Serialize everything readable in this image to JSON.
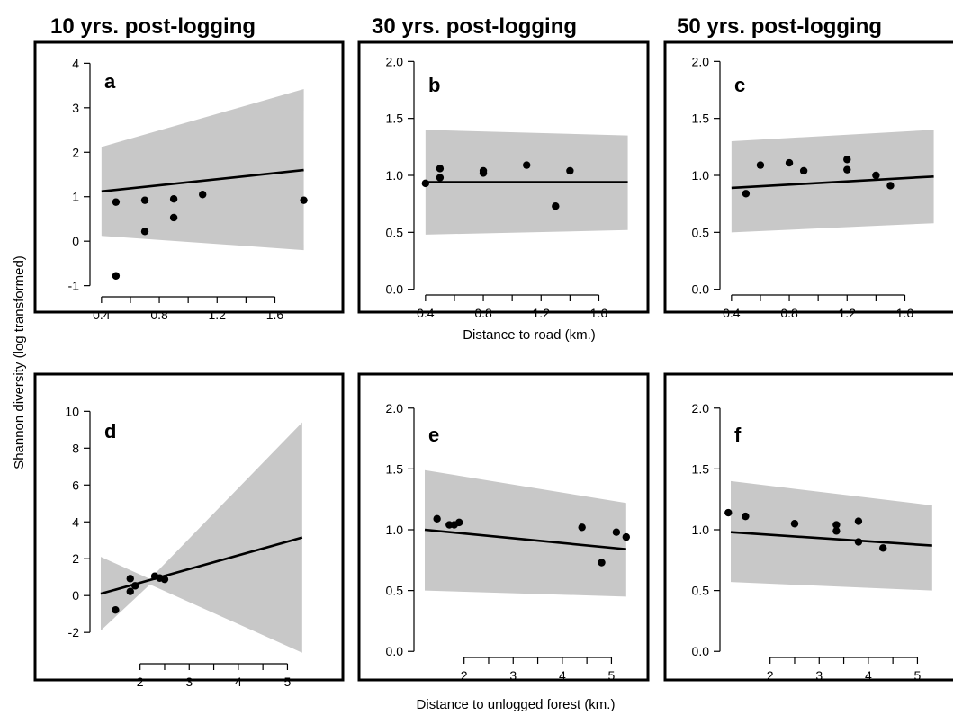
{
  "column_titles": [
    "10 yrs. post-logging",
    "30 yrs. post-logging",
    "50 yrs. post-logging"
  ],
  "ylabel": "Shannon diversity (log transformed)",
  "xlabels": [
    "Distance to road (km.)",
    "Distance to unlogged forest (km.)"
  ],
  "colors": {
    "band": "#c8c8c8",
    "points": "#000000",
    "line": "#000000"
  },
  "chart_data": [
    {
      "type": "scatter",
      "panel": "a",
      "title": "10 yrs. post-logging",
      "xlabel": "Distance to road (km.)",
      "ylabel": "Shannon diversity (log transformed)",
      "xlim": [
        0.32,
        1.84
      ],
      "ylim": [
        -1.25,
        4.25
      ],
      "xticks": [
        0.4,
        0.8,
        1.2,
        1.6
      ],
      "yticks": [
        -1,
        0,
        1,
        2,
        3,
        4
      ],
      "points": [
        [
          0.5,
          0.88
        ],
        [
          0.5,
          -0.78
        ],
        [
          0.7,
          0.92
        ],
        [
          0.7,
          0.22
        ],
        [
          0.9,
          0.95
        ],
        [
          0.9,
          0.53
        ],
        [
          1.1,
          1.05
        ],
        [
          1.8,
          0.92
        ]
      ],
      "fit": {
        "x": [
          0.4,
          1.8
        ],
        "y": [
          1.12,
          1.6
        ]
      },
      "band": {
        "x": [
          0.4,
          1.8
        ],
        "upper": [
          2.12,
          3.42
        ],
        "lower": [
          0.12,
          -0.2
        ]
      },
      "grid": false
    },
    {
      "type": "scatter",
      "panel": "b",
      "title": "30 yrs. post-logging",
      "xlabel": "Distance to road (km.)",
      "ylabel": "Shannon diversity (log transformed)",
      "xlim": [
        0.32,
        1.84
      ],
      "ylim": [
        -0.05,
        2.05
      ],
      "xticks": [
        0.4,
        0.8,
        1.2,
        1.6
      ],
      "yticks": [
        0.0,
        0.5,
        1.0,
        1.5,
        2.0
      ],
      "ytick_labels": [
        "0.0",
        "0.5",
        "1.0",
        "1.5",
        "2.0"
      ],
      "points": [
        [
          0.4,
          0.93
        ],
        [
          0.5,
          1.06
        ],
        [
          0.5,
          0.98
        ],
        [
          0.8,
          1.04
        ],
        [
          0.8,
          1.02
        ],
        [
          1.1,
          1.09
        ],
        [
          1.3,
          0.73
        ],
        [
          1.4,
          1.04
        ]
      ],
      "fit": {
        "x": [
          0.4,
          1.8
        ],
        "y": [
          0.94,
          0.94
        ]
      },
      "band": {
        "x": [
          0.4,
          1.8
        ],
        "upper": [
          1.4,
          1.35
        ],
        "lower": [
          0.48,
          0.52
        ]
      },
      "grid": false
    },
    {
      "type": "scatter",
      "panel": "c",
      "title": "50 yrs. post-logging",
      "xlabel": "Distance to road (km.)",
      "ylabel": "Shannon diversity (log transformed)",
      "xlim": [
        0.32,
        1.84
      ],
      "ylim": [
        -0.05,
        2.05
      ],
      "xticks": [
        0.4,
        0.8,
        1.2,
        1.6
      ],
      "yticks": [
        0.0,
        0.5,
        1.0,
        1.5,
        2.0
      ],
      "ytick_labels": [
        "0.0",
        "0.5",
        "1.0",
        "1.5",
        "2.0"
      ],
      "points": [
        [
          0.5,
          0.84
        ],
        [
          0.6,
          1.09
        ],
        [
          0.8,
          1.11
        ],
        [
          0.9,
          1.04
        ],
        [
          1.2,
          1.14
        ],
        [
          1.2,
          1.05
        ],
        [
          1.4,
          1.0
        ],
        [
          1.5,
          0.91
        ]
      ],
      "fit": {
        "x": [
          0.4,
          1.8
        ],
        "y": [
          0.89,
          0.99
        ]
      },
      "band": {
        "x": [
          0.4,
          1.8
        ],
        "upper": [
          1.3,
          1.4
        ],
        "lower": [
          0.5,
          0.58
        ]
      },
      "grid": false
    },
    {
      "type": "scatter",
      "panel": "d",
      "title": "10 yrs. post-logging",
      "xlabel": "Distance to unlogged forest (km.)",
      "ylabel": "Shannon diversity (log transformed)",
      "xlim": [
        0.98,
        5.45
      ],
      "ylim": [
        -3.7,
        10.7
      ],
      "xticks": [
        2,
        3,
        4,
        5
      ],
      "yticks": [
        -2,
        0,
        2,
        4,
        6,
        8,
        10
      ],
      "points": [
        [
          1.5,
          -0.78
        ],
        [
          1.8,
          0.92
        ],
        [
          1.8,
          0.22
        ],
        [
          1.9,
          0.53
        ],
        [
          2.3,
          1.05
        ],
        [
          2.4,
          0.95
        ],
        [
          2.5,
          0.88
        ]
      ],
      "fit": {
        "x": [
          1.2,
          5.3
        ],
        "y": [
          0.1,
          3.15
        ]
      },
      "band": {
        "x": [
          1.2,
          2.2,
          5.3
        ],
        "upper": [
          2.1,
          0.9,
          9.4
        ],
        "lower": [
          -1.9,
          0.6,
          -3.1
        ]
      },
      "grid": false
    },
    {
      "type": "scatter",
      "panel": "e",
      "title": "30 yrs. post-logging",
      "xlabel": "Distance to unlogged forest (km.)",
      "ylabel": "Shannon diversity (log transformed)",
      "xlim": [
        0.98,
        5.45
      ],
      "ylim": [
        -0.05,
        2.05
      ],
      "xticks": [
        2,
        3,
        4,
        5
      ],
      "yticks": [
        0.0,
        0.5,
        1.0,
        1.5,
        2.0
      ],
      "ytick_labels": [
        "0.0",
        "0.5",
        "1.0",
        "1.5",
        "2.0"
      ],
      "points": [
        [
          1.45,
          1.09
        ],
        [
          1.7,
          1.04
        ],
        [
          1.8,
          1.04
        ],
        [
          1.9,
          1.06
        ],
        [
          4.4,
          1.02
        ],
        [
          4.8,
          0.73
        ],
        [
          5.1,
          0.98
        ],
        [
          5.3,
          0.94
        ]
      ],
      "fit": {
        "x": [
          1.2,
          5.3
        ],
        "y": [
          1.0,
          0.84
        ]
      },
      "band": {
        "x": [
          1.2,
          5.3
        ],
        "upper": [
          1.49,
          1.22
        ],
        "lower": [
          0.5,
          0.45
        ]
      },
      "grid": false
    },
    {
      "type": "scatter",
      "panel": "f",
      "title": "50 yrs. post-logging",
      "xlabel": "Distance to unlogged forest (km.)",
      "ylabel": "Shannon diversity (log transformed)",
      "xlim": [
        0.98,
        5.45
      ],
      "ylim": [
        -0.05,
        2.05
      ],
      "xticks": [
        2,
        3,
        4,
        5
      ],
      "yticks": [
        0.0,
        0.5,
        1.0,
        1.5,
        2.0
      ],
      "ytick_labels": [
        "0.0",
        "0.5",
        "1.0",
        "1.5",
        "2.0"
      ],
      "points": [
        [
          1.15,
          1.14
        ],
        [
          1.5,
          1.11
        ],
        [
          2.5,
          1.05
        ],
        [
          3.35,
          1.04
        ],
        [
          3.35,
          0.99
        ],
        [
          3.8,
          1.07
        ],
        [
          3.8,
          0.9
        ],
        [
          4.3,
          0.85
        ]
      ],
      "fit": {
        "x": [
          1.2,
          5.3
        ],
        "y": [
          0.98,
          0.87
        ]
      },
      "band": {
        "x": [
          1.2,
          5.3
        ],
        "upper": [
          1.4,
          1.2
        ],
        "lower": [
          0.57,
          0.5
        ]
      },
      "grid": false
    }
  ]
}
